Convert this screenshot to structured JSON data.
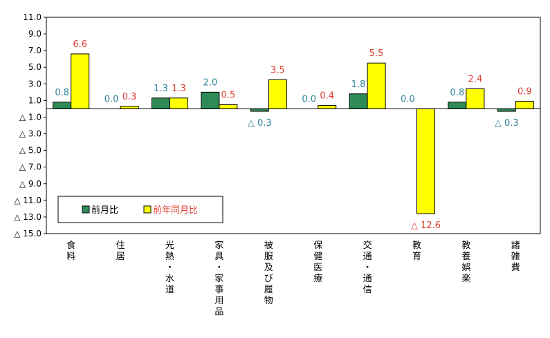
{
  "chart_data": {
    "type": "bar",
    "categories": [
      "食料",
      "住居",
      "光熱・水道",
      "家具・家事用品",
      "被服及び履物",
      "保健医療",
      "交通・通信",
      "教育",
      "教養娯楽",
      "諸雑費"
    ],
    "series": [
      {
        "name": "前月比",
        "color": "#2e8b57",
        "label_color": "#31859c",
        "values": [
          0.8,
          0.0,
          1.3,
          2.0,
          -0.3,
          0.0,
          1.8,
          0.0,
          0.8,
          -0.3
        ],
        "labels": [
          "0.8",
          "0.0",
          "1.3",
          "2.0",
          "△ 0.3",
          "0.0",
          "1.8",
          "0.0",
          "0.8",
          "△ 0.3"
        ]
      },
      {
        "name": "前年同月比",
        "color": "#ffff00",
        "label_color": "#e03c31",
        "values": [
          6.6,
          0.3,
          1.3,
          0.5,
          3.5,
          0.4,
          5.5,
          -12.6,
          2.4,
          0.9
        ],
        "labels": [
          "6.6",
          "0.3",
          "1.3",
          "0.5",
          "3.5",
          "0.4",
          "5.5",
          "△ 12.6",
          "2.4",
          "0.9"
        ]
      }
    ],
    "y_ticks": [
      11.0,
      9.0,
      7.0,
      5.0,
      3.0,
      1.0,
      -1.0,
      -3.0,
      -5.0,
      -7.0,
      -9.0,
      -11.0,
      -13.0,
      -15.0
    ],
    "y_tick_labels": [
      "11.0",
      "9.0",
      "7.0",
      "5.0",
      "3.0",
      "1.0",
      "△ 1.0",
      "△ 3.0",
      "△ 5.0",
      "△ 7.0",
      "△ 9.0",
      "△ 11.0",
      "△ 13.0",
      "△ 15.0"
    ],
    "ylim": [
      -15.0,
      11.0
    ],
    "grid": false,
    "legend_position": "bottom-left"
  }
}
